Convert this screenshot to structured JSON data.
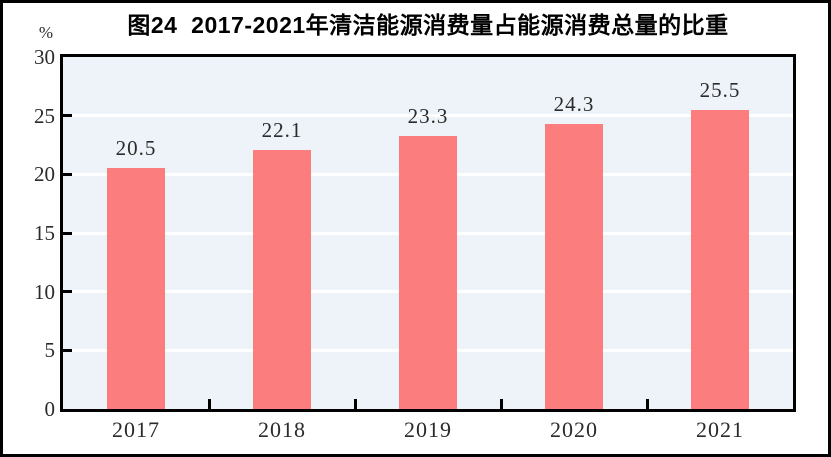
{
  "figure": {
    "title": "图24  2017-2021年清洁能源消费量占能源消费总量的比重",
    "unit_label": "%"
  },
  "chart_data": {
    "type": "bar",
    "title": "图24  2017-2021年清洁能源消费量占能源消费总量的比重",
    "categories": [
      "2017",
      "2018",
      "2019",
      "2020",
      "2021"
    ],
    "values": [
      20.5,
      22.1,
      23.3,
      24.3,
      25.5
    ],
    "bar_labels": [
      "20.5",
      "22.1",
      "23.3",
      "24.3",
      "25.5"
    ],
    "xlabel": "",
    "ylabel": "%",
    "ylim": [
      0,
      30
    ],
    "yticks": [
      0,
      5,
      10,
      15,
      20,
      25,
      30
    ],
    "grid": true,
    "legend": false,
    "colors": {
      "bar": "#FB7D7D",
      "plot_background": "#EDF3F8",
      "gridline": "#FFFFFF",
      "axis_frame": "#000000",
      "text": "#2B2B2B",
      "title": "#000000",
      "page_background": "#FFFFFF",
      "page_border": "#000000"
    }
  }
}
